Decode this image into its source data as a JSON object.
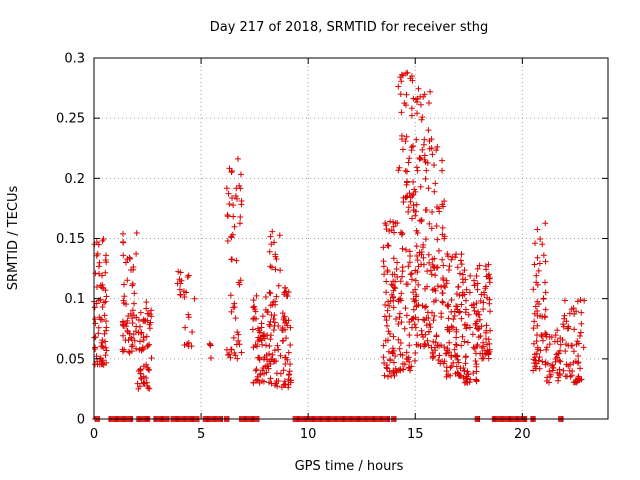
{
  "chart_data": {
    "type": "scatter",
    "title": "Day 217 of 2018, SRMTID for receiver sthg",
    "xlabel": "GPS time / hours",
    "ylabel": "SRMTID / TECUs",
    "xlim": [
      0,
      24
    ],
    "ylim": [
      0,
      0.3
    ],
    "xticks": [
      0,
      5,
      10,
      15,
      20
    ],
    "xtick_labels": [
      "0",
      "5",
      "10",
      "15",
      "20"
    ],
    "yticks": [
      0,
      0.05,
      0.1,
      0.15,
      0.2,
      0.25,
      0.3
    ],
    "ytick_labels": [
      "0",
      "0.05",
      "0.1",
      "0.15",
      "0.2",
      "0.25",
      "0.3"
    ],
    "grid": true,
    "marker": "plus",
    "color": "#dd0000",
    "clusters": [
      {
        "x_range": [
          0.0,
          0.6
        ],
        "y_range": [
          0.045,
          0.15
        ],
        "n": 70
      },
      {
        "x_range": [
          1.3,
          2.0
        ],
        "y_range": [
          0.055,
          0.155
        ],
        "n": 60
      },
      {
        "x_range": [
          2.0,
          2.7
        ],
        "y_range": [
          0.025,
          0.1
        ],
        "n": 60
      },
      {
        "x_range": [
          3.9,
          4.2
        ],
        "y_range": [
          0.1,
          0.125
        ],
        "n": 10
      },
      {
        "x_range": [
          4.2,
          4.7
        ],
        "y_range": [
          0.06,
          0.12
        ],
        "n": 14
      },
      {
        "x_range": [
          5.4,
          5.6
        ],
        "y_range": [
          0.05,
          0.072
        ],
        "n": 4
      },
      {
        "x_range": [
          6.2,
          6.9
        ],
        "y_range": [
          0.05,
          0.225
        ],
        "n": 55
      },
      {
        "x_range": [
          7.4,
          8.2
        ],
        "y_range": [
          0.03,
          0.11
        ],
        "n": 70
      },
      {
        "x_range": [
          8.2,
          8.7
        ],
        "y_range": [
          0.025,
          0.16
        ],
        "n": 50
      },
      {
        "x_range": [
          8.7,
          9.2
        ],
        "y_range": [
          0.025,
          0.11
        ],
        "n": 50
      },
      {
        "x_range": [
          13.5,
          14.2
        ],
        "y_range": [
          0.035,
          0.165
        ],
        "n": 80
      },
      {
        "x_range": [
          14.2,
          15.0
        ],
        "y_range": [
          0.04,
          0.29
        ],
        "n": 120
      },
      {
        "x_range": [
          15.0,
          15.7
        ],
        "y_range": [
          0.06,
          0.275
        ],
        "n": 100
      },
      {
        "x_range": [
          15.7,
          16.4
        ],
        "y_range": [
          0.045,
          0.235
        ],
        "n": 80
      },
      {
        "x_range": [
          16.4,
          17.2
        ],
        "y_range": [
          0.035,
          0.14
        ],
        "n": 80
      },
      {
        "x_range": [
          17.2,
          17.9
        ],
        "y_range": [
          0.03,
          0.125
        ],
        "n": 70
      },
      {
        "x_range": [
          17.9,
          18.5
        ],
        "y_range": [
          0.05,
          0.135
        ],
        "n": 60
      },
      {
        "x_range": [
          20.5,
          21.1
        ],
        "y_range": [
          0.04,
          0.165
        ],
        "n": 60
      },
      {
        "x_range": [
          21.1,
          21.8
        ],
        "y_range": [
          0.03,
          0.075
        ],
        "n": 40
      },
      {
        "x_range": [
          21.8,
          22.9
        ],
        "y_range": [
          0.03,
          0.1
        ],
        "n": 60
      }
    ],
    "zero_segments": [
      [
        0.05,
        0.25
      ],
      [
        0.7,
        1.8
      ],
      [
        2.0,
        2.6
      ],
      [
        2.8,
        3.5
      ],
      [
        3.6,
        4.9
      ],
      [
        5.1,
        6.0
      ],
      [
        6.1,
        6.3
      ],
      [
        6.8,
        7.7
      ],
      [
        9.3,
        13.8
      ],
      [
        13.9,
        14.1
      ],
      [
        17.8,
        18.0
      ],
      [
        18.6,
        20.2
      ],
      [
        20.4,
        20.6
      ],
      [
        21.7,
        21.9
      ]
    ]
  }
}
